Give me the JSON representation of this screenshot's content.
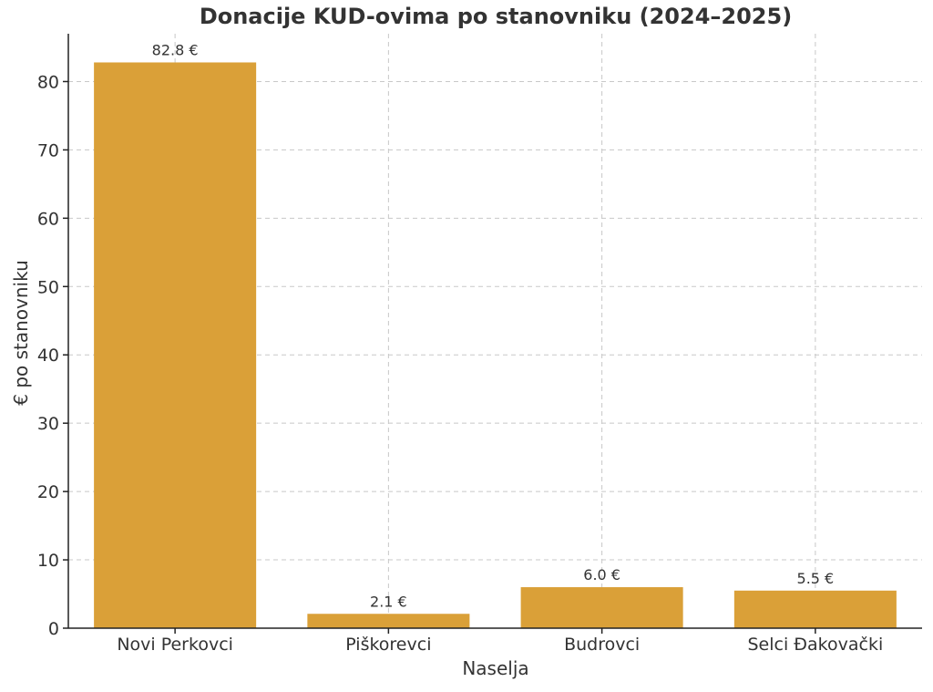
{
  "chart_data": {
    "type": "bar",
    "title": "Donacije KUD-ovima po stanovniku (2024–2025)",
    "xlabel": "Naselja",
    "ylabel": "€ po stanovniku",
    "categories": [
      "Novi Perkovci",
      "Piškorevci",
      "Budrovci",
      "Selci Đakovački"
    ],
    "values": [
      82.8,
      2.1,
      6.0,
      5.5
    ],
    "data_labels": [
      "82.8 €",
      "2.1 €",
      "6.0 €",
      "5.5 €"
    ],
    "ylim": [
      0,
      87
    ],
    "yticks": [
      0,
      10,
      20,
      30,
      40,
      50,
      60,
      70,
      80
    ],
    "grid": true,
    "bar_color": "#DAA038"
  }
}
